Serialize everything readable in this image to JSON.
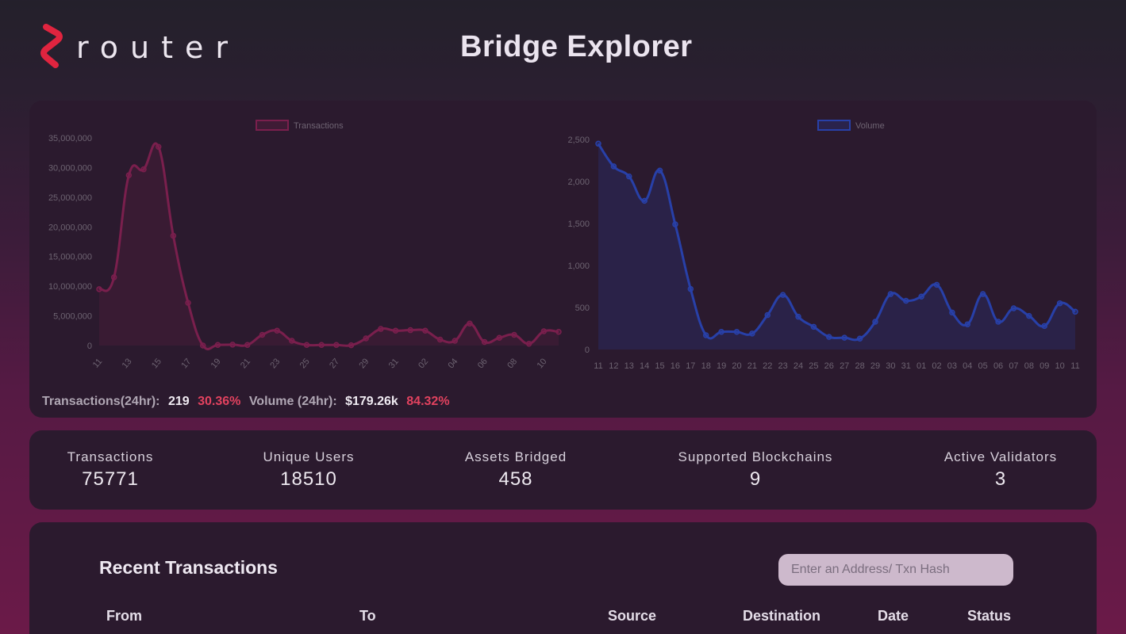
{
  "header": {
    "logo_text": "router",
    "title": "Bridge Explorer"
  },
  "summary": {
    "tx_label": "Transactions(24hr):",
    "tx_value": "219",
    "tx_change": "30.36%",
    "vol_label": "Volume (24hr):",
    "vol_value": "$179.26k",
    "vol_change": "84.32%"
  },
  "stats": [
    {
      "label": "Transactions",
      "value": "75771"
    },
    {
      "label": "Unique Users",
      "value": "18510"
    },
    {
      "label": "Assets Bridged",
      "value": "458"
    },
    {
      "label": "Supported Blockchains",
      "value": "9"
    },
    {
      "label": "Active Validators",
      "value": "3"
    }
  ],
  "transactions": {
    "title": "Recent Transactions",
    "search_placeholder": "Enter an Address/ Txn Hash",
    "columns": [
      "From",
      "To",
      "Source",
      "Destination",
      "Date",
      "Status"
    ]
  },
  "colors": {
    "transactions_line": "#7a1f4d",
    "volume_line": "#2840a8"
  },
  "chart_data": [
    {
      "type": "area",
      "legend": "Transactions",
      "x": [
        "11",
        "12",
        "13",
        "14",
        "15",
        "16",
        "17",
        "18",
        "19",
        "20",
        "21",
        "22",
        "23",
        "24",
        "25",
        "26",
        "27",
        "28",
        "29",
        "30",
        "31",
        "01",
        "02",
        "03",
        "04",
        "05",
        "06",
        "07",
        "08",
        "09",
        "10",
        "11"
      ],
      "x_tick_labels": [
        "11",
        "13",
        "15",
        "17",
        "19",
        "21",
        "23",
        "25",
        "27",
        "29",
        "31",
        "02",
        "04",
        "06",
        "08",
        "10"
      ],
      "values": [
        9500000,
        11500000,
        28700000,
        29700000,
        33500000,
        18500000,
        7200000,
        0,
        100000,
        150000,
        100000,
        1800000,
        2500000,
        800000,
        100000,
        100000,
        100000,
        50000,
        1200000,
        2800000,
        2500000,
        2600000,
        2500000,
        1000000,
        800000,
        3700000,
        600000,
        1300000,
        1800000,
        300000,
        2400000,
        2300000
      ],
      "yticks": [
        "0",
        "5,000,000",
        "10,000,000",
        "15,000,000",
        "20,000,000",
        "25,000,000",
        "30,000,000",
        "35,000,000"
      ],
      "ylim": [
        0,
        35000000
      ],
      "legend_position": "top"
    },
    {
      "type": "area",
      "legend": "Volume",
      "x": [
        "11",
        "12",
        "13",
        "14",
        "15",
        "16",
        "17",
        "18",
        "19",
        "20",
        "21",
        "22",
        "23",
        "24",
        "25",
        "26",
        "27",
        "28",
        "29",
        "30",
        "31",
        "01",
        "02",
        "03",
        "04",
        "05",
        "06",
        "07",
        "08",
        "09",
        "10",
        "11"
      ],
      "x_tick_labels": [
        "11",
        "12",
        "13",
        "14",
        "15",
        "16",
        "17",
        "18",
        "19",
        "20",
        "21",
        "22",
        "23",
        "24",
        "25",
        "26",
        "27",
        "28",
        "29",
        "30",
        "31",
        "01",
        "02",
        "03",
        "04",
        "05",
        "06",
        "07",
        "08",
        "09",
        "10",
        "11"
      ],
      "values": [
        2450,
        2180,
        2060,
        1770,
        2130,
        1490,
        720,
        170,
        210,
        210,
        190,
        410,
        650,
        390,
        270,
        150,
        140,
        130,
        330,
        660,
        580,
        630,
        770,
        440,
        300,
        660,
        330,
        490,
        400,
        280,
        550,
        450
      ],
      "yticks": [
        "0",
        "500",
        "1,000",
        "1,500",
        "2,000",
        "2,500"
      ],
      "ylim": [
        0,
        2500
      ],
      "legend_position": "top"
    }
  ]
}
